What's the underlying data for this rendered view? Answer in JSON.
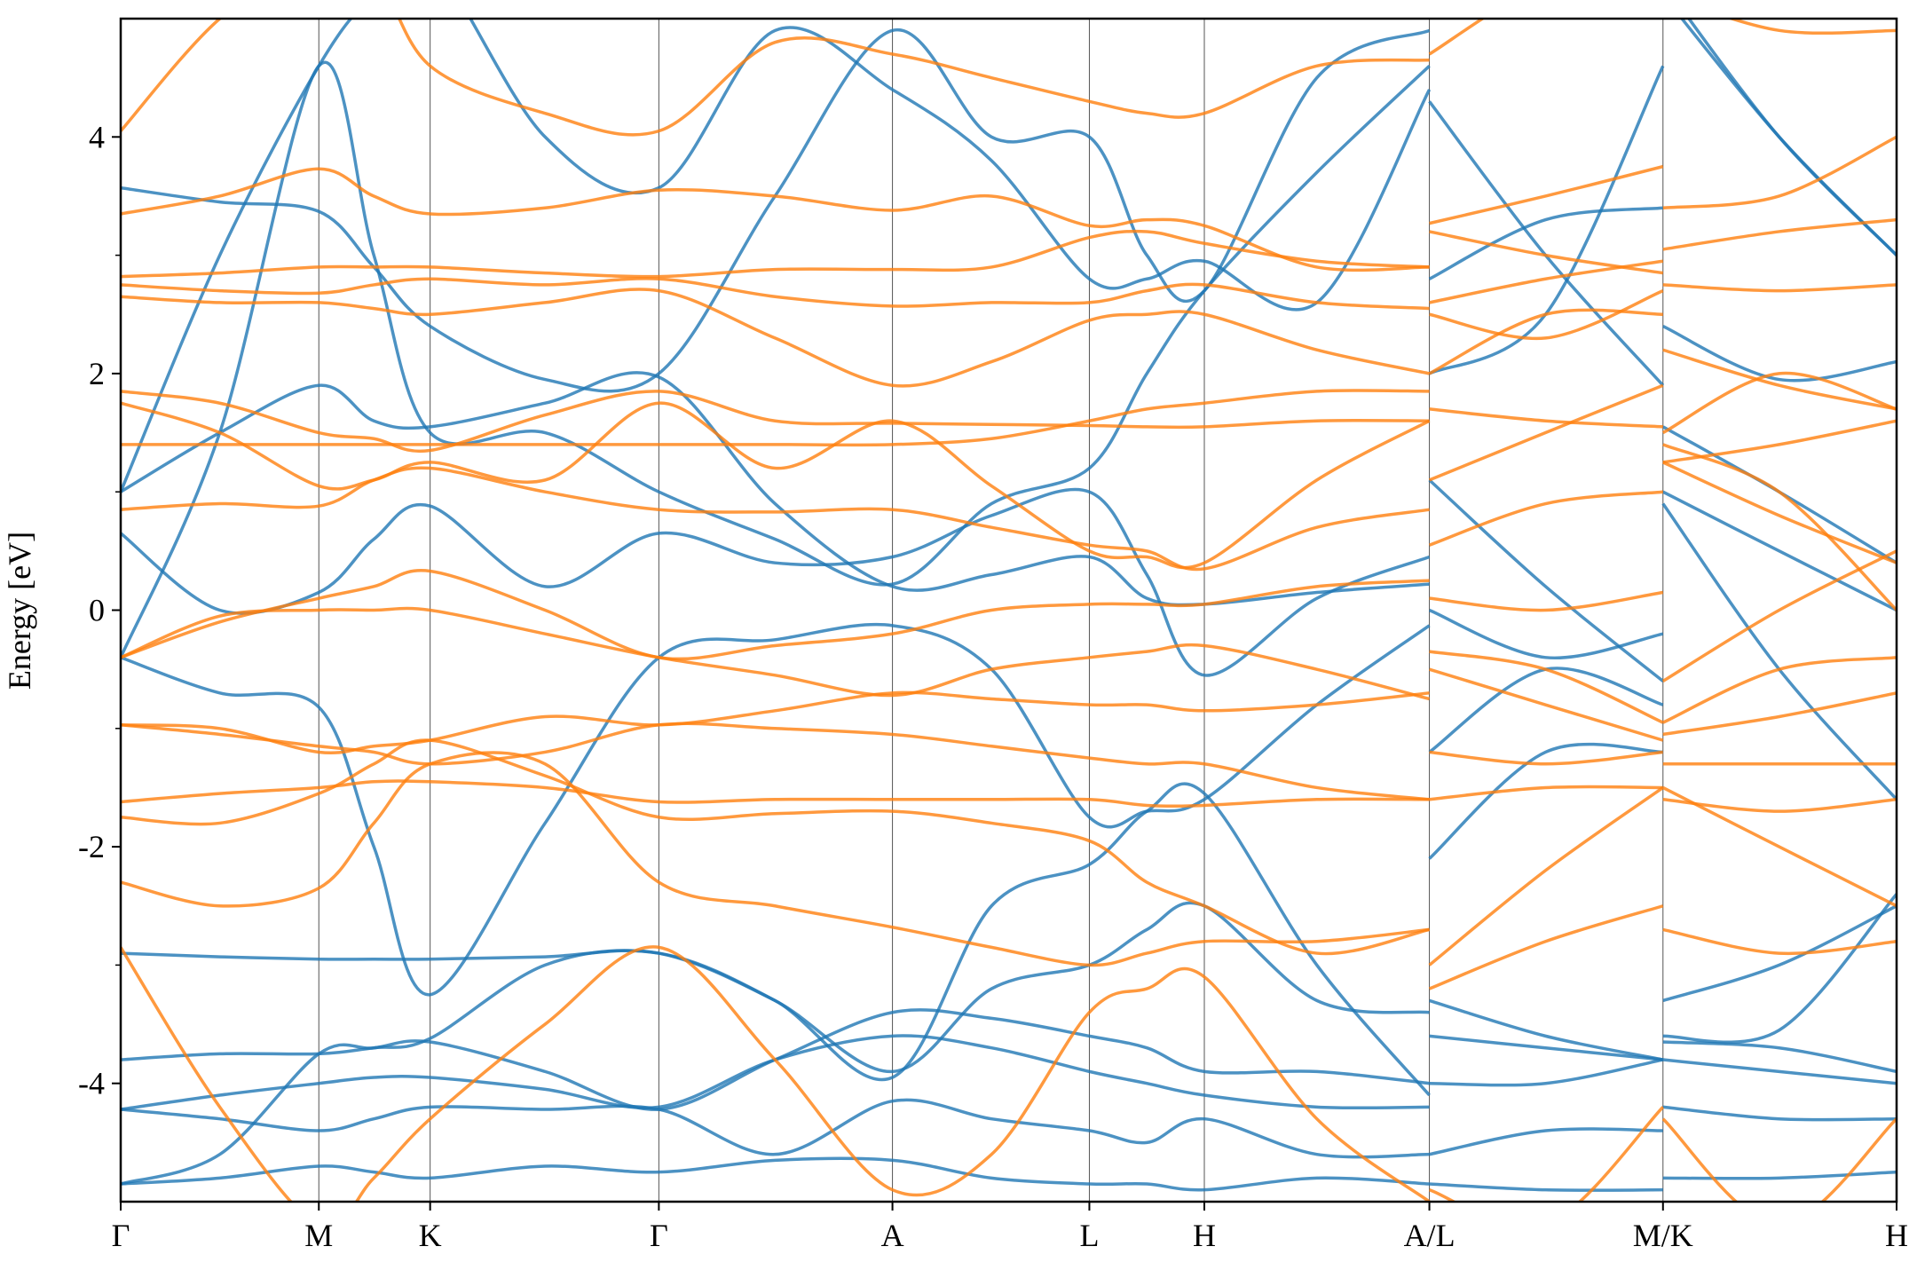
{
  "chart_data": {
    "type": "line",
    "y_label": "Energy [eV]",
    "x": [
      0,
      0.81,
      1.62,
      2.07,
      2.53,
      3.47,
      4.4,
      5.35,
      6.31,
      7.12,
      7.92,
      8.39,
      8.86,
      9.78,
      10.7,
      10.7,
      10.7,
      11.65,
      12.61,
      12.61,
      12.61,
      13.56,
      14.52
    ],
    "xlim": [
      0,
      14.52
    ],
    "xticks": [
      {
        "value": 0,
        "label": "Γ"
      },
      {
        "value": 1.62,
        "label": "M"
      },
      {
        "value": 2.53,
        "label": "K"
      },
      {
        "value": 4.4,
        "label": "Γ"
      },
      {
        "value": 6.31,
        "label": "A"
      },
      {
        "value": 7.92,
        "label": "L"
      },
      {
        "value": 8.86,
        "label": "H"
      },
      {
        "value": 10.7,
        "label": "A/L"
      },
      {
        "value": 12.61,
        "label": "M/K"
      },
      {
        "value": 14.52,
        "label": "H"
      }
    ],
    "xgrid": true,
    "ylim": [
      -5,
      5
    ],
    "yticks": [
      -4,
      -2,
      0,
      2,
      4
    ],
    "yminor_ticks": [
      -3,
      -1,
      1,
      3
    ],
    "line_opacity": 0.8,
    "series": [
      {
        "color": "#1f77b4",
        "values": [
          -0.4,
          -0.7,
          -0.82,
          -2.0,
          -3.25,
          -1.8,
          -0.4,
          -0.25,
          -0.13,
          -0.5,
          -1.75,
          -1.7,
          -1.6,
          -0.8,
          -0.13,
          null,
          -1.2,
          -0.5,
          -0.8,
          null,
          0.9,
          -0.5,
          -1.6
        ]
      },
      {
        "color": "#1f77b4",
        "values": [
          1.0,
          3.0,
          4.6,
          5.2,
          5.5,
          4.0,
          3.57,
          4.9,
          4.4,
          3.8,
          2.8,
          2.8,
          2.95,
          2.6,
          4.4,
          null,
          4.3,
          3.0,
          1.9,
          null,
          2.4,
          1.95,
          2.1
        ]
      },
      {
        "color": "#1f77b4",
        "values": [
          0.65,
          0.0,
          0.15,
          0.6,
          0.88,
          0.2,
          0.65,
          0.4,
          0.45,
          0.8,
          1.0,
          0.3,
          -0.55,
          0.1,
          0.45,
          null,
          1.1,
          0.2,
          -0.6,
          null,
          1.55,
          1.0,
          0.4
        ]
      },
      {
        "color": "#1f77b4",
        "values": [
          1.0,
          1.5,
          1.9,
          1.6,
          1.55,
          1.75,
          1.97,
          0.9,
          0.2,
          0.3,
          0.45,
          0.1,
          0.05,
          0.15,
          0.22,
          null,
          0.0,
          -0.4,
          -0.2,
          null,
          1.0,
          0.5,
          0.0
        ]
      },
      {
        "color": "#1f77b4",
        "values": [
          3.57,
          3.45,
          3.37,
          2.9,
          2.4,
          1.95,
          2.0,
          3.5,
          4.9,
          4.0,
          4.0,
          3.0,
          2.7,
          4.5,
          4.9,
          null,
          2.8,
          3.3,
          3.4,
          null,
          5.3,
          4.0,
          3.0
        ]
      },
      {
        "color": "#1f77b4",
        "values": [
          -2.9,
          -2.93,
          -2.95,
          -2.95,
          -2.95,
          -2.93,
          -2.9,
          -3.3,
          -3.9,
          -3.2,
          -3.0,
          -2.7,
          -2.5,
          -3.3,
          -3.4,
          null,
          -3.3,
          -3.6,
          -3.8,
          null,
          -3.3,
          -3.0,
          -2.5
        ]
      },
      {
        "color": "#1f77b4",
        "values": [
          -3.8,
          -3.75,
          -3.75,
          -3.7,
          -3.65,
          -3.9,
          -4.22,
          -3.8,
          -3.4,
          -3.45,
          -3.6,
          -3.7,
          -3.9,
          -3.9,
          -4.0,
          null,
          -3.6,
          -3.7,
          -3.8,
          null,
          -3.65,
          -3.7,
          -3.9
        ]
      },
      {
        "color": "#1f77b4",
        "values": [
          -4.22,
          -4.1,
          -4.0,
          -3.95,
          -3.95,
          -4.05,
          -4.2,
          -3.8,
          -3.6,
          -3.7,
          -3.9,
          -4.0,
          -4.1,
          -4.2,
          -4.2,
          null,
          -4.0,
          -4.0,
          -3.8,
          null,
          -3.8,
          -3.9,
          -4.0
        ]
      },
      {
        "color": "#1f77b4",
        "values": [
          -4.22,
          -4.3,
          -4.4,
          -4.3,
          -4.2,
          -4.22,
          -4.22,
          -4.6,
          -4.15,
          -4.3,
          -4.4,
          -4.5,
          -4.3,
          -4.6,
          -4.6,
          null,
          -4.6,
          -4.4,
          -4.4,
          null,
          -4.2,
          -4.3,
          -4.3
        ]
      },
      {
        "color": "#1f77b4",
        "values": [
          -4.85,
          -4.8,
          -4.7,
          -4.75,
          -4.8,
          -4.7,
          -4.75,
          -4.65,
          -4.65,
          -4.8,
          -4.85,
          -4.85,
          -4.9,
          -4.8,
          -4.85,
          null,
          -4.85,
          -4.9,
          -4.9,
          null,
          -4.8,
          -4.8,
          -4.75
        ]
      },
      {
        "color": "#1f77b4",
        "values": [
          -0.4,
          1.5,
          4.6,
          3.0,
          1.5,
          1.5,
          1.0,
          0.6,
          0.22,
          0.9,
          1.2,
          2.0,
          2.7,
          3.7,
          4.6,
          null,
          2.0,
          2.5,
          4.6,
          null,
          5.2,
          4.0,
          3.0
        ]
      },
      {
        "color": "#1f77b4",
        "values": [
          -4.85,
          -4.6,
          -3.75,
          -3.7,
          -3.62,
          -3.0,
          -2.9,
          -3.3,
          -3.95,
          -2.5,
          -2.15,
          -1.7,
          -1.55,
          -3.0,
          -4.1,
          null,
          -2.1,
          -1.2,
          -1.2,
          null,
          -3.6,
          -3.55,
          -2.4
        ]
      },
      {
        "color": "#ff7f0e",
        "values": [
          4.05,
          5.0,
          5.5,
          5.4,
          4.6,
          4.2,
          4.05,
          4.8,
          4.7,
          4.5,
          4.3,
          4.2,
          4.2,
          4.6,
          4.65,
          null,
          4.7,
          5.3,
          5.5,
          null,
          5.2,
          4.9,
          4.9
        ]
      },
      {
        "color": "#ff7f0e",
        "values": [
          3.35,
          3.5,
          3.73,
          3.5,
          3.35,
          3.4,
          3.55,
          3.5,
          3.38,
          3.5,
          3.25,
          3.3,
          3.25,
          2.9,
          2.9,
          null,
          3.27,
          3.5,
          3.75,
          null,
          3.4,
          3.5,
          4.0
        ]
      },
      {
        "color": "#ff7f0e",
        "values": [
          2.82,
          2.85,
          2.9,
          2.9,
          2.9,
          2.85,
          2.82,
          2.88,
          2.88,
          2.9,
          3.15,
          3.2,
          3.1,
          2.95,
          2.9,
          null,
          3.2,
          3.0,
          2.85,
          null,
          3.05,
          3.2,
          3.3
        ]
      },
      {
        "color": "#ff7f0e",
        "values": [
          2.75,
          2.7,
          2.68,
          2.75,
          2.8,
          2.75,
          2.8,
          2.65,
          2.57,
          2.6,
          2.6,
          2.7,
          2.75,
          2.6,
          2.55,
          null,
          2.6,
          2.8,
          2.95,
          null,
          2.75,
          2.7,
          2.75
        ]
      },
      {
        "color": "#ff7f0e",
        "values": [
          2.65,
          2.6,
          2.6,
          2.55,
          2.5,
          2.6,
          2.7,
          2.3,
          1.9,
          2.1,
          2.45,
          2.5,
          2.5,
          2.2,
          2.0,
          null,
          2.5,
          2.3,
          2.7,
          null,
          2.2,
          1.9,
          1.7
        ]
      },
      {
        "color": "#ff7f0e",
        "values": [
          1.85,
          1.75,
          1.5,
          1.45,
          1.35,
          1.65,
          1.85,
          1.6,
          1.58,
          1.57,
          1.56,
          1.55,
          1.55,
          1.6,
          1.6,
          null,
          1.7,
          1.6,
          1.55,
          null,
          1.25,
          1.4,
          1.6
        ]
      },
      {
        "color": "#ff7f0e",
        "values": [
          1.4,
          1.4,
          1.4,
          1.4,
          1.4,
          1.4,
          1.4,
          1.4,
          1.4,
          1.45,
          1.6,
          1.7,
          1.75,
          1.85,
          1.85,
          null,
          2.0,
          2.5,
          2.5,
          null,
          1.5,
          2.0,
          1.7
        ]
      },
      {
        "color": "#ff7f0e",
        "values": [
          0.85,
          0.9,
          0.88,
          1.1,
          1.2,
          1.0,
          0.85,
          0.83,
          0.85,
          0.7,
          0.55,
          0.5,
          0.35,
          0.7,
          0.85,
          null,
          0.55,
          0.9,
          1.0,
          null,
          1.25,
          0.8,
          0.4
        ]
      },
      {
        "color": "#ff7f0e",
        "values": [
          -0.4,
          -0.1,
          0.1,
          0.2,
          0.33,
          0.0,
          -0.4,
          -0.3,
          -0.2,
          0.0,
          0.05,
          0.05,
          0.05,
          0.2,
          0.25,
          null,
          0.1,
          0.0,
          0.15,
          null,
          -0.6,
          0.0,
          0.5
        ]
      },
      {
        "color": "#ff7f0e",
        "values": [
          -0.4,
          -0.05,
          0.0,
          0.0,
          0.0,
          -0.2,
          -0.4,
          -0.55,
          -0.72,
          -0.5,
          -0.4,
          -0.35,
          -0.3,
          -0.5,
          -0.75,
          null,
          -0.35,
          -0.5,
          -0.95,
          null,
          -0.95,
          -0.5,
          -0.4
        ]
      },
      {
        "color": "#ff7f0e",
        "values": [
          -0.97,
          -1.0,
          -1.2,
          -1.15,
          -1.1,
          -0.9,
          -0.97,
          -0.85,
          -0.7,
          -0.75,
          -0.8,
          -0.8,
          -0.85,
          -0.8,
          -0.7,
          null,
          -0.5,
          -0.8,
          -1.1,
          null,
          -1.05,
          -0.9,
          -0.7
        ]
      },
      {
        "color": "#ff7f0e",
        "values": [
          -0.97,
          -1.05,
          -1.15,
          -1.2,
          -1.3,
          -1.2,
          -0.97,
          -1.0,
          -1.05,
          -1.15,
          -1.25,
          -1.3,
          -1.3,
          -1.5,
          -1.6,
          null,
          -1.2,
          -1.3,
          -1.2,
          null,
          -1.3,
          -1.3,
          -1.3
        ]
      },
      {
        "color": "#ff7f0e",
        "values": [
          -1.62,
          -1.55,
          -1.5,
          -1.45,
          -1.45,
          -1.5,
          -1.62,
          -1.6,
          -1.6,
          -1.6,
          -1.6,
          -1.65,
          -1.65,
          -1.6,
          -1.6,
          null,
          -1.6,
          -1.5,
          -1.5,
          null,
          -1.6,
          -1.7,
          -1.6
        ]
      },
      {
        "color": "#ff7f0e",
        "values": [
          -1.75,
          -1.8,
          -1.55,
          -1.3,
          -1.1,
          -1.4,
          -1.75,
          -1.72,
          -1.7,
          -1.8,
          -1.95,
          -2.3,
          -2.5,
          -2.9,
          -2.7,
          null,
          -3.0,
          -2.2,
          -1.5,
          null,
          -1.5,
          -2.0,
          -2.5
        ]
      },
      {
        "color": "#ff7f0e",
        "values": [
          -2.3,
          -2.5,
          -2.35,
          -1.8,
          -1.3,
          -1.3,
          -2.3,
          -2.5,
          -2.68,
          -2.85,
          -3.0,
          -2.9,
          -2.8,
          -2.8,
          -2.7,
          null,
          -3.2,
          -2.8,
          -2.5,
          null,
          -2.7,
          -2.9,
          -2.8
        ]
      },
      {
        "color": "#ff7f0e",
        "values": [
          -2.85,
          -4.2,
          -5.2,
          -4.8,
          -4.3,
          -3.5,
          -2.85,
          -3.8,
          -4.9,
          -4.6,
          -3.4,
          -3.2,
          -3.1,
          -4.3,
          -5.0,
          null,
          -4.9,
          -5.2,
          -4.2,
          null,
          -4.3,
          -5.2,
          -4.3
        ]
      },
      {
        "color": "#ff7f0e",
        "values": [
          1.75,
          1.5,
          1.05,
          1.1,
          1.25,
          1.1,
          1.75,
          1.2,
          1.6,
          1.05,
          0.5,
          0.45,
          0.4,
          1.1,
          1.6,
          null,
          1.1,
          1.5,
          1.9,
          null,
          1.4,
          1.0,
          0.0
        ]
      }
    ]
  }
}
